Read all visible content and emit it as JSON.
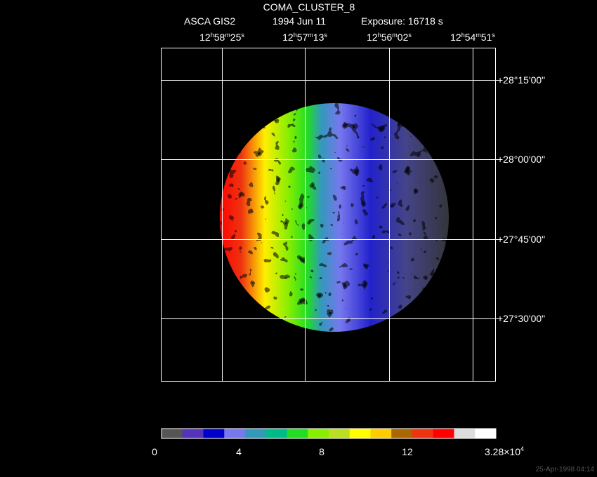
{
  "header": {
    "title": "COMA_CLUSTER_8",
    "instrument": "ASCA GIS2",
    "date": "1994 Jun 11",
    "exposure": "Exposure: 16718 s"
  },
  "ra_labels": [
    [
      "12",
      "h",
      "58",
      "m",
      "25",
      "s"
    ],
    [
      "12",
      "h",
      "57",
      "m",
      "13",
      "s"
    ],
    [
      "12",
      "h",
      "56",
      "m",
      "02",
      "s"
    ],
    [
      "12",
      "h",
      "54",
      "m",
      "51",
      "s"
    ]
  ],
  "dec_labels": [
    "+28°15'00\"",
    "+28°00'00\"",
    "+27°45'00\"",
    "+27°30'00\""
  ],
  "colorbar": {
    "colors": [
      "#555555",
      "#5533bb",
      "#0000cc",
      "#7777ee",
      "#3399bb",
      "#00bb88",
      "#22dd22",
      "#88ee00",
      "#bbdd22",
      "#ffff00",
      "#ffcc00",
      "#aa6600",
      "#ee3311",
      "#ff0000",
      "#dddddd",
      "#ffffff"
    ],
    "labels": [
      "0",
      "4",
      "8",
      "12"
    ],
    "max_label": [
      "3.28×10",
      "4"
    ]
  },
  "footer": "25-Apr-1998 04:14"
}
